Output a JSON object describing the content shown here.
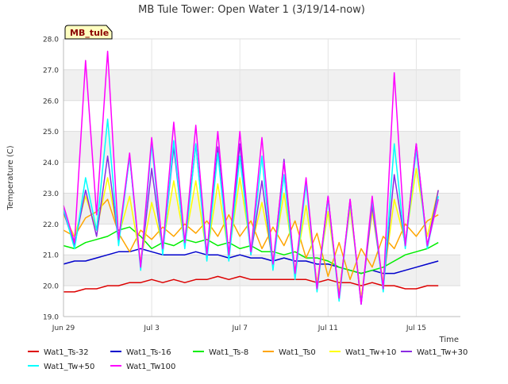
{
  "chart_data": {
    "type": "line",
    "title": "MB Tule Tower: Open Water 1 (3/19/14-now)",
    "badge": "MB_tule",
    "xlabel": "Time",
    "ylabel": "Temperature (C)",
    "ylim": [
      19.0,
      28.0
    ],
    "xlim": [
      0,
      18
    ],
    "yticks": [
      {
        "v": 19.0,
        "label": "19.0"
      },
      {
        "v": 20.0,
        "label": "20.0"
      },
      {
        "v": 21.0,
        "label": "21.0"
      },
      {
        "v": 22.0,
        "label": "22.0"
      },
      {
        "v": 23.0,
        "label": "23.0"
      },
      {
        "v": 24.0,
        "label": "24.0"
      },
      {
        "v": 25.0,
        "label": "25.0"
      },
      {
        "v": 26.0,
        "label": "26.0"
      },
      {
        "v": 27.0,
        "label": "27.0"
      },
      {
        "v": 28.0,
        "label": "28.0"
      }
    ],
    "xticks": [
      {
        "v": 0,
        "label": "Jun 29"
      },
      {
        "v": 4,
        "label": "Jul 3"
      },
      {
        "v": 8,
        "label": "Jul 7"
      },
      {
        "v": 12,
        "label": "Jul 11"
      },
      {
        "v": 16,
        "label": "Jul 15"
      }
    ],
    "x": [
      0.0,
      0.5,
      1.0,
      1.5,
      2.0,
      2.5,
      3.0,
      3.5,
      4.0,
      4.5,
      5.0,
      5.5,
      6.0,
      6.5,
      7.0,
      7.5,
      8.0,
      8.5,
      9.0,
      9.5,
      10.0,
      10.5,
      11.0,
      11.5,
      12.0,
      12.5,
      13.0,
      13.5,
      14.0,
      14.5,
      15.0,
      15.5,
      16.0,
      16.5,
      17.0
    ],
    "series": [
      {
        "name": "Wat1_Ts-32",
        "color": "#dd0000",
        "values": [
          19.8,
          19.8,
          19.9,
          19.9,
          20.0,
          20.0,
          20.1,
          20.1,
          20.2,
          20.1,
          20.2,
          20.1,
          20.2,
          20.2,
          20.3,
          20.2,
          20.3,
          20.2,
          20.2,
          20.2,
          20.2,
          20.2,
          20.2,
          20.1,
          20.2,
          20.1,
          20.1,
          20.0,
          20.1,
          20.0,
          20.0,
          19.9,
          19.9,
          20.0,
          20.0
        ]
      },
      {
        "name": "Wat1_Ts-16",
        "color": "#0000cc",
        "values": [
          20.7,
          20.8,
          20.8,
          20.9,
          21.0,
          21.1,
          21.1,
          21.2,
          21.1,
          21.0,
          21.0,
          21.0,
          21.1,
          21.0,
          21.0,
          20.9,
          21.0,
          20.9,
          20.9,
          20.8,
          20.9,
          20.8,
          20.8,
          20.7,
          20.7,
          20.6,
          20.5,
          20.4,
          20.5,
          20.4,
          20.4,
          20.5,
          20.6,
          20.7,
          20.8
        ]
      },
      {
        "name": "Wat1_Ts-8",
        "color": "#00ee00",
        "values": [
          21.3,
          21.2,
          21.4,
          21.5,
          21.6,
          21.8,
          21.9,
          21.6,
          21.2,
          21.4,
          21.3,
          21.5,
          21.4,
          21.5,
          21.3,
          21.4,
          21.2,
          21.3,
          21.1,
          21.1,
          21.0,
          21.1,
          20.9,
          20.9,
          20.8,
          20.6,
          20.5,
          20.4,
          20.5,
          20.6,
          20.8,
          21.0,
          21.1,
          21.2,
          21.4
        ]
      },
      {
        "name": "Wat1_Ts0",
        "color": "#ffa500",
        "values": [
          21.8,
          21.6,
          22.2,
          22.4,
          22.8,
          21.7,
          21.1,
          21.8,
          21.5,
          21.9,
          21.6,
          22.0,
          21.7,
          22.1,
          21.6,
          22.3,
          21.6,
          22.1,
          21.2,
          21.9,
          21.3,
          22.1,
          20.9,
          21.7,
          20.3,
          21.4,
          20.2,
          21.2,
          20.6,
          21.6,
          21.2,
          22.0,
          21.6,
          22.1,
          22.3
        ]
      },
      {
        "name": "Wat1_Tw+10",
        "color": "#ffff00",
        "values": [
          22.3,
          21.6,
          22.9,
          21.8,
          23.5,
          21.6,
          22.9,
          20.8,
          22.7,
          21.3,
          23.4,
          21.4,
          23.4,
          21.0,
          23.3,
          21.0,
          23.5,
          21.2,
          22.7,
          20.8,
          23.0,
          20.5,
          22.6,
          20.1,
          22.4,
          19.8,
          22.5,
          19.6,
          22.4,
          20.1,
          22.8,
          21.4,
          23.8,
          21.6,
          23.1
        ]
      },
      {
        "name": "Wat1_Tw+30",
        "color": "#8b2be2",
        "values": [
          22.4,
          21.3,
          23.1,
          21.6,
          24.2,
          21.4,
          24.2,
          20.6,
          23.8,
          21.1,
          24.5,
          21.3,
          24.6,
          20.9,
          24.5,
          20.9,
          24.6,
          21.0,
          23.4,
          20.6,
          24.1,
          20.3,
          23.4,
          19.9,
          22.9,
          19.6,
          22.8,
          19.4,
          22.6,
          19.9,
          23.6,
          21.3,
          24.6,
          21.3,
          23.1
        ]
      },
      {
        "name": "Wat1_Tw+50",
        "color": "#00ffff",
        "values": [
          22.5,
          21.2,
          23.5,
          21.8,
          25.4,
          21.3,
          24.2,
          20.5,
          24.6,
          21.0,
          24.7,
          21.2,
          24.6,
          20.8,
          24.3,
          20.8,
          24.2,
          21.0,
          24.2,
          20.5,
          23.6,
          20.2,
          23.3,
          19.8,
          22.8,
          19.5,
          22.7,
          19.4,
          22.8,
          19.8,
          24.6,
          21.2,
          24.4,
          21.2,
          22.9
        ]
      },
      {
        "name": "Wat1_Tw100",
        "color": "#ff00ff",
        "values": [
          22.6,
          21.4,
          27.3,
          22.3,
          27.6,
          21.5,
          24.3,
          20.6,
          24.8,
          21.2,
          25.3,
          21.4,
          25.2,
          21.0,
          25.0,
          21.0,
          25.0,
          21.1,
          24.8,
          20.7,
          24.0,
          20.4,
          23.5,
          19.9,
          22.9,
          19.6,
          22.8,
          19.4,
          22.9,
          19.9,
          26.9,
          21.3,
          24.6,
          21.3,
          22.8
        ]
      }
    ]
  }
}
